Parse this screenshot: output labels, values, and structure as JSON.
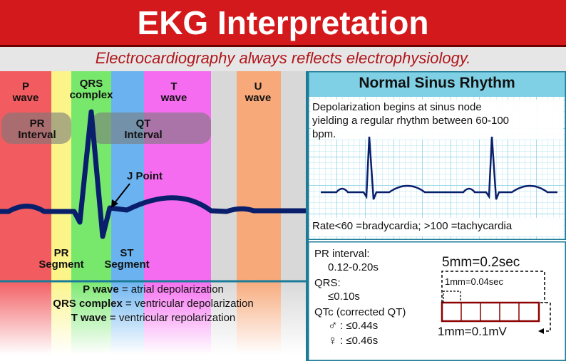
{
  "header": {
    "title": "EKG Interpretation",
    "subtitle": "Electrocardiography always reflects electrophysiology."
  },
  "colors": {
    "title_bg": "#d4191d",
    "subtitle_text": "#b0161b",
    "panel_border": "#1b7b99",
    "trace": "#0a1f6b",
    "p_band": "#f25b5f",
    "pr_segment_band": "#fbf489",
    "qrs_band": "#78e86d",
    "st_band": "#6ab3f0",
    "t_band": "#f66cf0",
    "u_band": "#f7a97a",
    "grey_band": "#d8d8d8",
    "ecg_grid": "#8fd7ea"
  },
  "diagram": {
    "p_wave": "P\nwave",
    "qrs_complex": "QRS\ncomplex",
    "t_wave": "T\nwave",
    "u_wave": "U\nwave",
    "pr_interval": "PR\nInterval",
    "qt_interval": "QT\nInterval",
    "j_point": "J Point",
    "pr_segment": "PR\nSegment",
    "st_segment": "ST\nSegment"
  },
  "legend": [
    {
      "term": "P wave",
      "definition": " = atrial depolarization"
    },
    {
      "term": "QRS complex",
      "definition": " = ventricular depolarization"
    },
    {
      "term": "T wave",
      "definition": " = ventricular repolarization"
    }
  ],
  "sinus": {
    "heading": "Normal Sinus Rhythm",
    "desc_line1": "Depolarization begins at sinus node",
    "desc_line2": "yielding a regular rhythm between 60-100",
    "desc_line3": "bpm.",
    "rate": "Rate<60 =bradycardia; >100 =tachycardia"
  },
  "intervals": {
    "pr_label": "PR interval:",
    "pr_value": "0.12-0.20s",
    "qrs_label": "QRS:",
    "qrs_value": "≤0.10s",
    "qtc_label": "QTc (corrected QT)",
    "male_value": ": ≤0.44s",
    "female_value": ": ≤0.46s",
    "male_symbol": "♂",
    "female_symbol": "♀"
  },
  "scale": {
    "big_box": "5mm=0.2sec",
    "small_box": "1mm=0.04sec",
    "voltage": "1mm=0.1mV"
  }
}
